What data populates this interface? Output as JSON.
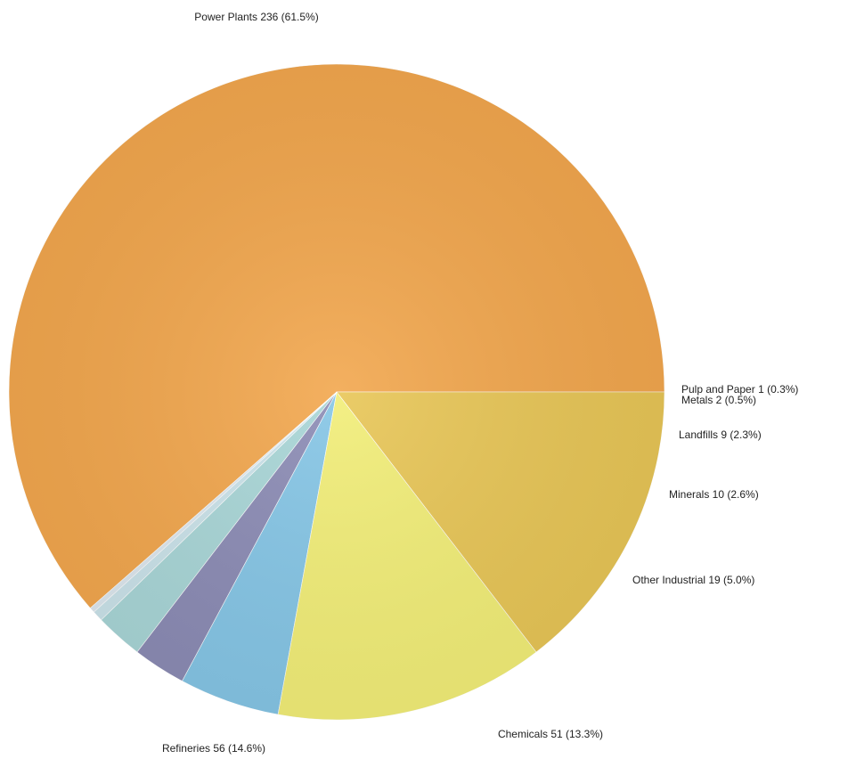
{
  "chart_data": {
    "type": "pie",
    "slices": [
      {
        "label": "Power Plants",
        "value": 236,
        "percent": "61.5%",
        "text": "Power Plants 236 (61.5%)",
        "color": "#F2A74E"
      },
      {
        "label": "Pulp and Paper",
        "value": 1,
        "percent": "0.3%",
        "text": "Pulp and Paper 1 (0.3%)",
        "color": "#DDE7EE"
      },
      {
        "label": "Metals",
        "value": 2,
        "percent": "0.5%",
        "text": "Metals 2 (0.5%)",
        "color": "#CBE3EA"
      },
      {
        "label": "Landfills",
        "value": 9,
        "percent": "2.3%",
        "text": "Landfills 9 (2.3%)",
        "color": "#A9D6D7"
      },
      {
        "label": "Minerals",
        "value": 10,
        "percent": "2.6%",
        "text": "Minerals 10 (2.6%)",
        "color": "#8C8CB5"
      },
      {
        "label": "Other Industrial",
        "value": 19,
        "percent": "5.0%",
        "text": "Other Industrial 19 (5.0%)",
        "color": "#86C6E6"
      },
      {
        "label": "Chemicals",
        "value": 51,
        "percent": "13.3%",
        "text": "Chemicals 51 (13.3%)",
        "color": "#F2EE78"
      },
      {
        "label": "Refineries",
        "value": 56,
        "percent": "14.6%",
        "text": "Refineries 56 (14.6%)",
        "color": "#E8C657"
      }
    ]
  }
}
